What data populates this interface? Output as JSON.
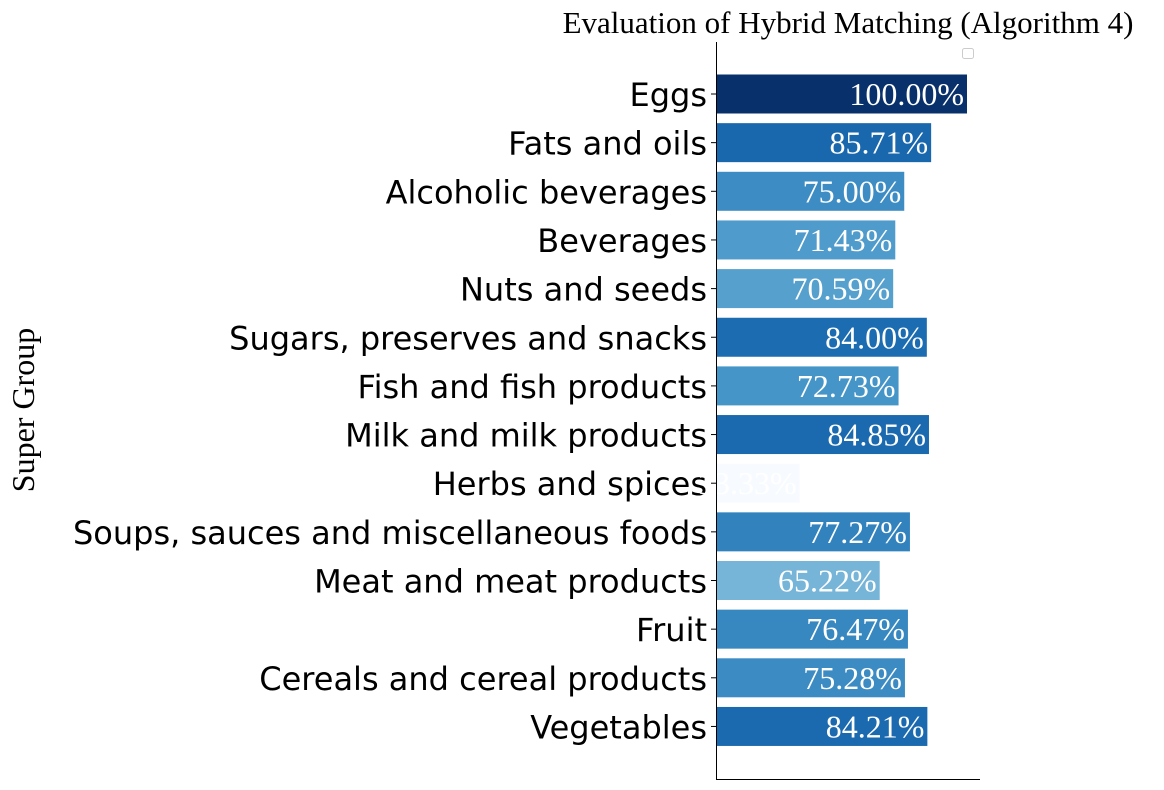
{
  "chart_data": {
    "type": "bar",
    "orientation": "horizontal",
    "title": "Evaluation of Hybrid Matching (Algorithm 4)",
    "ylabel": "Super Group",
    "xlabel": "",
    "xlim": [
      0,
      105
    ],
    "categories": [
      "Eggs",
      "Fats and oils",
      "Alcoholic beverages",
      "Beverages",
      "Nuts and seeds",
      "Sugars, preserves and snacks",
      "Fish and fish products",
      "Milk and milk products",
      "Herbs and spices",
      "Soups, sauces and miscellaneous foods",
      "Meat and meat products",
      "Fruit",
      "Cereals and cereal products",
      "Vegetables"
    ],
    "values": [
      100.0,
      85.71,
      75.0,
      71.43,
      70.59,
      84.0,
      72.73,
      84.85,
      33.33,
      77.27,
      65.22,
      76.47,
      75.28,
      84.21
    ],
    "labels": [
      "100.00%",
      "85.71%",
      "75.00%",
      "71.43%",
      "70.59%",
      "84.00%",
      "72.73%",
      "84.85%",
      "33.33%",
      "77.27%",
      "65.22%",
      "76.47%",
      "75.28%",
      "84.21%"
    ],
    "colors": [
      "#08306b",
      "#1967ad",
      "#3d8dc4",
      "#4f9bcb",
      "#56a0ce",
      "#1c6cb1",
      "#4695c8",
      "#1b69af",
      "#f7fbff",
      "#3282be",
      "#76b4d8",
      "#3787c0",
      "#3c8cc3",
      "#1b6aaf"
    ],
    "color_scale": "Blues",
    "grid": false,
    "legend": "top-right (empty)"
  }
}
